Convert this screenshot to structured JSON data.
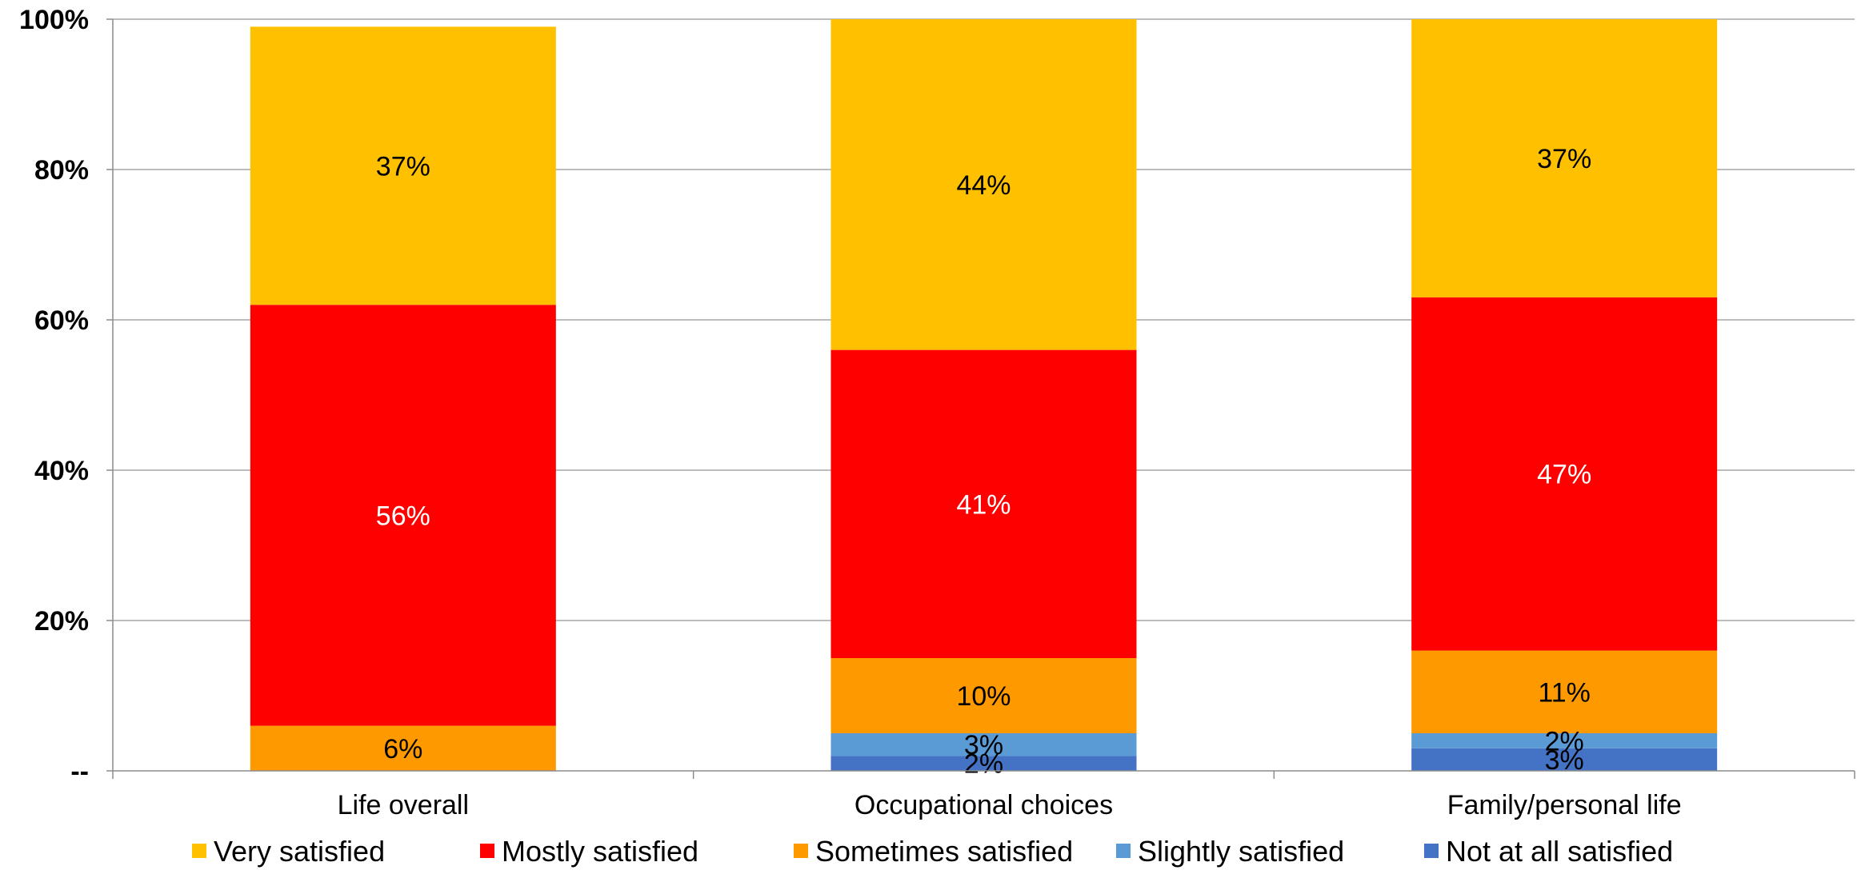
{
  "chart_data": {
    "type": "bar",
    "stacked": true,
    "categories": [
      "Life overall",
      "Occupational choices",
      "Family/personal life"
    ],
    "series": [
      {
        "name": "Not at all satisfied",
        "color": "#4472C4",
        "values": [
          0,
          2,
          3
        ],
        "labels": [
          "",
          "2%",
          "3%"
        ],
        "label_color": "#000000"
      },
      {
        "name": "Slightly satisfied",
        "color": "#5B9BD5",
        "values": [
          0,
          3,
          2
        ],
        "labels": [
          "",
          "3%",
          "2%"
        ],
        "label_color": "#000000"
      },
      {
        "name": "Sometimes satisfied",
        "color": "#FF9900",
        "values": [
          6,
          10,
          11
        ],
        "labels": [
          "6%",
          "10%",
          "11%"
        ],
        "label_color": "#000000"
      },
      {
        "name": "Mostly satisfied",
        "color": "#FF0000",
        "values": [
          56,
          41,
          47
        ],
        "labels": [
          "56%",
          "41%",
          "47%"
        ],
        "label_color": "#FFFFFF"
      },
      {
        "name": "Very satisfied",
        "color": "#FFC000",
        "values": [
          37,
          44,
          37
        ],
        "labels": [
          "37%",
          "44%",
          "37%"
        ],
        "label_color": "#000000"
      }
    ],
    "legend_order": [
      "Very satisfied",
      "Mostly satisfied",
      "Sometimes satisfied",
      "Slightly satisfied",
      "Not at all satisfied"
    ],
    "ylim": [
      0,
      100
    ],
    "yticks": [
      0,
      20,
      40,
      60,
      80,
      100
    ],
    "ytick_labels": [
      "--",
      "20%",
      "40%",
      "60%",
      "80%",
      "100%"
    ],
    "grid": true,
    "legend_position": "bottom",
    "title": "",
    "xlabel": "",
    "ylabel": ""
  }
}
